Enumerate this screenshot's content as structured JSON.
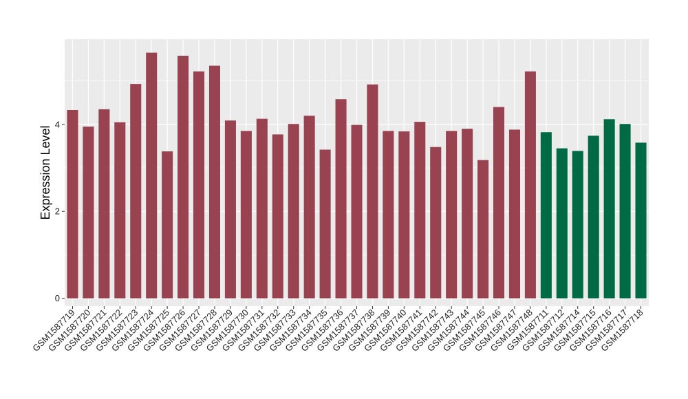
{
  "chart_data": {
    "type": "bar",
    "title": "",
    "xlabel": "",
    "ylabel": "Expression Level",
    "ylim": [
      -0.18,
      5.96
    ],
    "yticks": [
      0,
      2,
      4
    ],
    "grid": true,
    "legend": "none",
    "colors": {
      "group1": "#9a4350",
      "group2": "#006a45",
      "panel": "#ebebeb",
      "grid": "#ffffff"
    },
    "categories": [
      "GSM1587719",
      "GSM1587720",
      "GSM1587721",
      "GSM1587722",
      "GSM1587723",
      "GSM1587724",
      "GSM1587725",
      "GSM1587726",
      "GSM1587727",
      "GSM1587728",
      "GSM1587729",
      "GSM1587730",
      "GSM1587731",
      "GSM1587732",
      "GSM1587733",
      "GSM1587734",
      "GSM1587735",
      "GSM1587736",
      "GSM1587737",
      "GSM1587738",
      "GSM1587739",
      "GSM1587740",
      "GSM1587741",
      "GSM1587742",
      "GSM1587743",
      "GSM1587744",
      "GSM1587745",
      "GSM1587746",
      "GSM1587747",
      "GSM1587748",
      "GSM1587711",
      "GSM1587712",
      "GSM1587714",
      "GSM1587715",
      "GSM1587716",
      "GSM1587717",
      "GSM1587718"
    ],
    "values": [
      4.33,
      3.95,
      4.35,
      4.05,
      4.93,
      5.65,
      3.38,
      5.58,
      5.22,
      5.35,
      4.09,
      3.85,
      4.13,
      3.77,
      4.01,
      4.2,
      3.42,
      4.58,
      3.99,
      4.92,
      3.85,
      3.84,
      4.06,
      3.48,
      3.85,
      3.9,
      3.18,
      4.4,
      3.88,
      5.22,
      3.82,
      3.45,
      3.39,
      3.74,
      4.12,
      4.01,
      3.58
    ],
    "bar_groups": [
      "group1",
      "group1",
      "group1",
      "group1",
      "group1",
      "group1",
      "group1",
      "group1",
      "group1",
      "group1",
      "group1",
      "group1",
      "group1",
      "group1",
      "group1",
      "group1",
      "group1",
      "group1",
      "group1",
      "group1",
      "group1",
      "group1",
      "group1",
      "group1",
      "group1",
      "group1",
      "group1",
      "group1",
      "group1",
      "group1",
      "group2",
      "group2",
      "group2",
      "group2",
      "group2",
      "group2",
      "group2"
    ]
  }
}
